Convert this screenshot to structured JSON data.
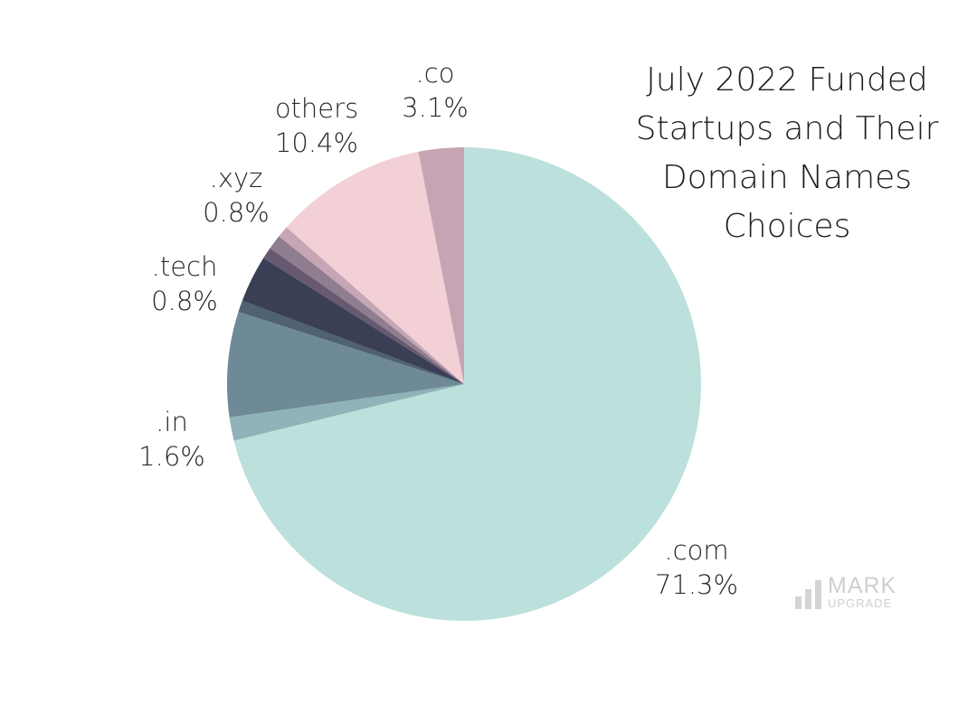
{
  "chart_data": {
    "type": "pie",
    "title": "July 2022 Funded Startups and Their Domain Names Choices",
    "title_lines": [
      "July 2022 Funded",
      "Startups and Their",
      "Domain Names",
      "Choices"
    ],
    "start": "top",
    "direction": "clockwise",
    "slices": [
      {
        "label": ".com",
        "value": 71.3,
        "value_label": "71.3%",
        "color": "#bce0dc"
      },
      {
        "label": ".in",
        "value": 1.6,
        "value_label": "1.6%",
        "color": "#8fb3b8"
      },
      {
        "label": null,
        "value": 7.2,
        "color": "#6e8a97"
      },
      {
        "label": null,
        "value": 0.8,
        "color": "#4f6173"
      },
      {
        "label": null,
        "value": 3.2,
        "color": "#3a3f55"
      },
      {
        "label": ".tech",
        "value": 0.8,
        "value_label": "0.8%",
        "color": "#675a70"
      },
      {
        "label": null,
        "value": 1.0,
        "color": "#8f7d90"
      },
      {
        "label": ".xyz",
        "value": 0.8,
        "value_label": "0.8%",
        "color": "#c6a6b4"
      },
      {
        "label": "others",
        "value": 10.4,
        "value_label": "10.4%",
        "color": "#f2d0d6"
      },
      {
        "label": ".co",
        "value": 3.1,
        "value_label": "3.1%",
        "color": "#c5a5b3"
      }
    ]
  },
  "watermark": {
    "line1": "MARK",
    "line2": "UPGRADE"
  }
}
